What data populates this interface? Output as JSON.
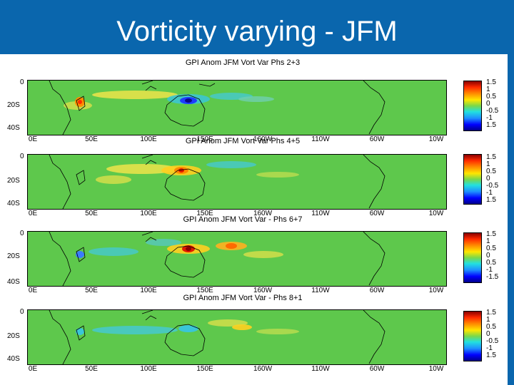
{
  "slide": {
    "title": "Vorticity varying - JFM"
  },
  "axes": {
    "y_labels": [
      "0",
      "20S",
      "40S"
    ],
    "x_labels": [
      "0E",
      "50E",
      "100E",
      "150E",
      "160W",
      "110W",
      "60W",
      "10W"
    ]
  },
  "colorbar": {
    "labels": [
      "1.5",
      "1",
      "0.5",
      "0",
      "-0.5",
      "-1",
      "1.5"
    ]
  },
  "colorbar_alt": {
    "labels": [
      "1.5",
      "1",
      "0.5",
      "0",
      "0.5",
      "-1",
      "-1.5"
    ]
  },
  "colorbar_alt2": {
    "labels": [
      "1.5",
      "1",
      "0.5",
      "0",
      "-0.5",
      "-1",
      "1.5"
    ]
  },
  "panels": [
    {
      "title": "GPI Anom JFM Vort Var   Phs 2+3"
    },
    {
      "title": "GPI Anom JFM Vort Var   Phs 4+5"
    },
    {
      "title": "GPI Anom JFM Vort Var - Phs 6+7"
    },
    {
      "title": "GPI Anom JFM Vort Var - Phs 8+1"
    }
  ],
  "colors": {
    "header_bg": "#0a66ad",
    "map_base": "#5ec84c"
  }
}
